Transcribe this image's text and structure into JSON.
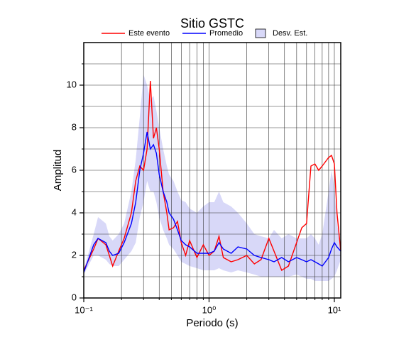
{
  "chart_data": {
    "type": "line",
    "title": "Sitio GSTC",
    "x_label": "Periodo (s)",
    "y_label": "Amplitud",
    "xscale": "log",
    "xlim": [
      0.1,
      11.25
    ],
    "ylim": [
      0,
      12
    ],
    "xticks": [
      {
        "value": 0.1,
        "label": "10⁻¹"
      },
      {
        "value": 1,
        "label": "10⁰"
      },
      {
        "value": 10,
        "label": "10¹"
      }
    ],
    "xminorticks": [
      0.2,
      0.3,
      0.4,
      0.5,
      0.6,
      0.7,
      0.8,
      0.9,
      2,
      3,
      4,
      5,
      6,
      7,
      8,
      9
    ],
    "yticks": [
      0,
      2,
      4,
      6,
      8,
      10
    ],
    "yminorticks": [
      1,
      3,
      5,
      7,
      9,
      11
    ],
    "grid": true,
    "legend": "top",
    "x": [
      0.1,
      0.12,
      0.13,
      0.15,
      0.16,
      0.17,
      0.19,
      0.21,
      0.24,
      0.26,
      0.28,
      0.3,
      0.32,
      0.34,
      0.36,
      0.38,
      0.4,
      0.43,
      0.46,
      0.48,
      0.52,
      0.56,
      0.6,
      0.65,
      0.7,
      0.8,
      0.9,
      1.0,
      1.1,
      1.2,
      1.3,
      1.5,
      1.7,
      2.0,
      2.3,
      2.6,
      3.0,
      3.3,
      3.8,
      4.3,
      5.0,
      5.5,
      6.0,
      6.5,
      7.0,
      7.5,
      8.0,
      9.0,
      9.5,
      10.0,
      10.5,
      11.25
    ],
    "series": [
      {
        "name": "Este evento",
        "color": "#ff0000",
        "values": [
          1.3,
          2.3,
          2.8,
          2.5,
          2.0,
          1.5,
          2.2,
          2.8,
          4.0,
          5.5,
          6.2,
          6.0,
          7.0,
          10.2,
          7.5,
          8.0,
          7.0,
          5.0,
          4.0,
          3.2,
          3.3,
          3.6,
          2.6,
          2.0,
          2.7,
          1.9,
          2.5,
          2.0,
          2.2,
          2.9,
          1.9,
          1.7,
          1.8,
          2.0,
          1.6,
          1.8,
          2.8,
          2.2,
          1.3,
          1.5,
          2.6,
          3.3,
          3.5,
          6.2,
          6.3,
          6.0,
          6.2,
          6.6,
          6.7,
          6.3,
          4.0,
          2.2
        ]
      },
      {
        "name": "Promedio",
        "color": "#0000ff",
        "values": [
          1.2,
          2.5,
          2.8,
          2.6,
          2.2,
          2.0,
          2.1,
          2.6,
          3.5,
          4.5,
          6.0,
          6.8,
          7.8,
          7.0,
          7.2,
          6.8,
          5.8,
          5.0,
          4.5,
          4.0,
          3.7,
          3.2,
          2.7,
          2.5,
          2.4,
          2.1,
          2.1,
          2.1,
          2.2,
          2.6,
          2.3,
          2.1,
          2.4,
          2.3,
          2.0,
          1.9,
          1.8,
          1.7,
          1.9,
          1.7,
          1.9,
          1.8,
          1.7,
          1.8,
          1.7,
          1.6,
          1.5,
          1.9,
          2.3,
          2.6,
          2.4,
          2.2
        ]
      }
    ],
    "band": {
      "name": "Desv. Est.",
      "color": "#d8d8f8",
      "upper": [
        1.3,
        3.0,
        3.8,
        3.5,
        2.9,
        2.7,
        3.0,
        3.5,
        5.0,
        6.5,
        8.5,
        10.5,
        10.0,
        9.3,
        9.5,
        8.8,
        8.0,
        7.0,
        6.2,
        5.8,
        5.5,
        5.0,
        4.6,
        4.5,
        4.2,
        4.0,
        4.3,
        4.5,
        4.5,
        5.0,
        4.5,
        4.3,
        4.0,
        3.5,
        3.0,
        2.9,
        2.8,
        3.2,
        2.8,
        3.0,
        2.8,
        2.8,
        2.8,
        3.0,
        2.8,
        2.5,
        3.0,
        5.0,
        6.0,
        5.2,
        3.5,
        2.6
      ],
      "lower": [
        1.1,
        2.0,
        2.0,
        1.8,
        1.6,
        1.5,
        1.5,
        1.8,
        2.2,
        2.6,
        3.8,
        4.5,
        5.5,
        5.0,
        5.0,
        4.5,
        3.8,
        3.2,
        2.8,
        2.5,
        2.3,
        2.0,
        1.7,
        1.6,
        1.5,
        1.4,
        1.3,
        1.3,
        1.3,
        1.4,
        1.3,
        1.2,
        1.3,
        1.2,
        1.1,
        1.0,
        1.0,
        1.0,
        1.0,
        1.0,
        1.1,
        1.0,
        0.9,
        0.9,
        0.8,
        0.8,
        0.8,
        0.8,
        0.9,
        1.0,
        1.3,
        1.8
      ]
    }
  }
}
